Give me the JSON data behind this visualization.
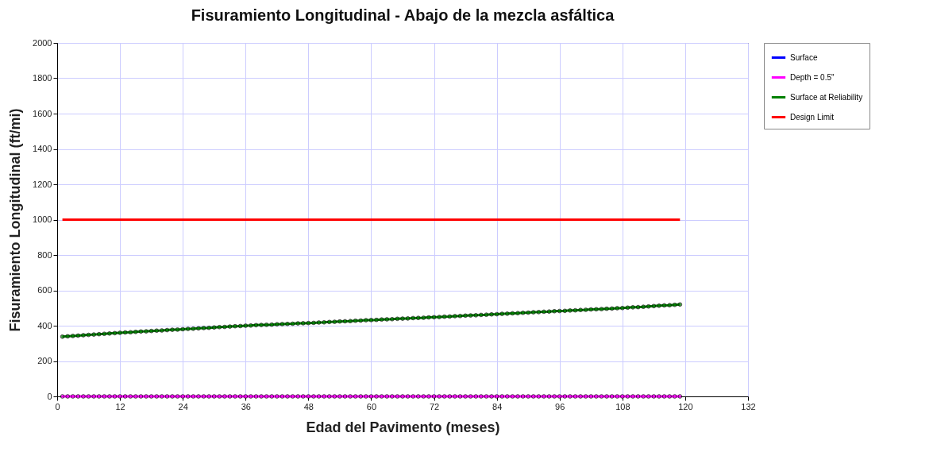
{
  "chart_data": {
    "type": "line",
    "title": "Fisuramiento Longitudinal - Abajo de la mezcla asfáltica",
    "xlabel": "Edad del Pavimento (meses)",
    "ylabel": "Fisuramiento Longitudinal  (ft/mi)",
    "x": [
      1,
      2,
      3,
      4,
      5,
      6,
      7,
      8,
      9,
      10,
      11,
      12,
      13,
      14,
      15,
      16,
      17,
      18,
      19,
      20,
      21,
      22,
      23,
      24,
      25,
      26,
      27,
      28,
      29,
      30,
      31,
      32,
      33,
      34,
      35,
      36,
      37,
      38,
      39,
      40,
      41,
      42,
      43,
      44,
      45,
      46,
      47,
      48,
      49,
      50,
      51,
      52,
      53,
      54,
      55,
      56,
      57,
      58,
      59,
      60,
      61,
      62,
      63,
      64,
      65,
      66,
      67,
      68,
      69,
      70,
      71,
      72,
      73,
      74,
      75,
      76,
      77,
      78,
      79,
      80,
      81,
      82,
      83,
      84,
      85,
      86,
      87,
      88,
      89,
      90,
      91,
      92,
      93,
      94,
      95,
      96,
      97,
      98,
      99,
      100,
      101,
      102,
      103,
      104,
      105,
      106,
      107,
      108,
      109,
      110,
      111,
      112,
      113,
      114,
      115,
      116,
      117,
      118,
      119
    ],
    "series": [
      {
        "name": "Surface",
        "color": "#0000ff",
        "marker": "circle",
        "values": [
          null,
          null,
          null,
          null,
          null,
          null,
          null,
          null,
          null,
          null,
          null,
          null,
          null,
          null,
          null,
          null,
          null,
          null,
          null,
          null,
          null,
          null,
          null,
          null,
          null,
          null,
          null,
          null,
          null,
          null,
          null,
          null,
          null,
          null,
          null,
          null,
          null,
          null,
          null,
          null,
          null,
          null,
          null,
          null,
          null,
          null,
          null,
          null,
          null,
          null,
          null,
          null,
          null,
          null,
          null,
          null,
          null,
          null,
          null,
          null,
          null,
          null,
          null,
          null,
          null,
          null,
          null,
          null,
          null,
          null,
          null,
          null,
          null,
          null,
          null,
          null,
          null,
          null,
          null,
          null,
          null,
          null,
          null,
          null,
          null,
          null,
          null,
          null,
          null,
          null,
          null,
          null,
          null,
          null,
          null,
          null,
          null,
          null,
          null,
          null,
          null,
          null,
          null,
          null,
          null,
          null,
          null,
          null,
          null,
          null,
          null,
          null,
          null,
          null,
          null,
          null,
          null,
          null,
          null
        ]
      },
      {
        "name": "Depth = 0.5\"",
        "color": "#ff00ff",
        "marker": "circle",
        "values": [
          0,
          0,
          0,
          0,
          0,
          0,
          0,
          0,
          0,
          0,
          0,
          0,
          0,
          0,
          0,
          0,
          0,
          0,
          0,
          0,
          0,
          0,
          0,
          0,
          0,
          0,
          0,
          0,
          0,
          0,
          0,
          0,
          0,
          0,
          0,
          0,
          0,
          0,
          0,
          0,
          0,
          0,
          0,
          0,
          0,
          0,
          0,
          0,
          0,
          0,
          0,
          0,
          0,
          0,
          0,
          0,
          0,
          0,
          0,
          0,
          0,
          0,
          0,
          0,
          0,
          0,
          0,
          0,
          0,
          0,
          0,
          0,
          0,
          0,
          0,
          0,
          0,
          0,
          0,
          0,
          0,
          0,
          0,
          0,
          0,
          0,
          0,
          0,
          0,
          0,
          0,
          0,
          0,
          0,
          0,
          0,
          0,
          0,
          0,
          0,
          0,
          0,
          0,
          0,
          0,
          0,
          0,
          0,
          0,
          0,
          0,
          0,
          0,
          0,
          0,
          0,
          0,
          0,
          0
        ]
      },
      {
        "name": "Surface at Reliability",
        "color": "#008000",
        "marker": "circle",
        "values": [
          338,
          340,
          342,
          344,
          346,
          348,
          350,
          352,
          354,
          356,
          358,
          360,
          362,
          363,
          365,
          367,
          368,
          370,
          372,
          373,
          375,
          377,
          378,
          380,
          382,
          383,
          385,
          387,
          388,
          390,
          392,
          393,
          395,
          397,
          398,
          400,
          401,
          403,
          404,
          405,
          406,
          408,
          409,
          410,
          411,
          413,
          414,
          415,
          416,
          418,
          419,
          421,
          422,
          424,
          425,
          426,
          428,
          429,
          431,
          432,
          433,
          435,
          436,
          437,
          439,
          440,
          441,
          443,
          444,
          445,
          447,
          448,
          449,
          451,
          452,
          454,
          455,
          457,
          458,
          459,
          461,
          462,
          464,
          465,
          467,
          468,
          470,
          471,
          473,
          474,
          476,
          477,
          479,
          480,
          482,
          483,
          484,
          486,
          487,
          489,
          490,
          492,
          493,
          494,
          496,
          497,
          499,
          500,
          502,
          504,
          505,
          507,
          509,
          511,
          513,
          515,
          516,
          518,
          520
        ]
      },
      {
        "name": "Design Limit",
        "color": "#ff0000",
        "marker": "none",
        "x": [
          1,
          119
        ],
        "values": [
          1000,
          1000
        ]
      }
    ],
    "xlim": [
      0,
      132
    ],
    "xticks": [
      0,
      12,
      24,
      36,
      48,
      60,
      72,
      84,
      96,
      108,
      120,
      132
    ],
    "ylim": [
      0,
      2000
    ],
    "yticks": [
      0,
      200,
      400,
      600,
      800,
      1000,
      1200,
      1400,
      1600,
      1800,
      2000
    ],
    "grid": true,
    "legend": "right"
  }
}
